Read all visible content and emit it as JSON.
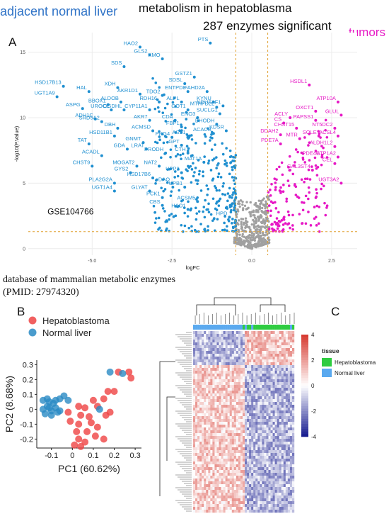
{
  "header": {
    "left_title": "adjacent normal liver",
    "center_title": "metabolism in hepatoblasma",
    "subtitle": "287 enzymes significant",
    "right_title": "tumors"
  },
  "panels": {
    "a": "A",
    "b": "B",
    "c": "C"
  },
  "database_note": {
    "line1": "database of mammalian metabolic enzymes",
    "line2": "(PMID: 27974320)"
  },
  "colors": {
    "normal": "#1f8fd0",
    "tumor": "#e619c5",
    "ns": "#a0a0a0",
    "threshold": "#e0a030",
    "hb_scatter": "#ef4444",
    "nl_scatter": "#2a8bc4",
    "hb_tissue": "#2ecc40",
    "nl_tissue": "#5aa9ef"
  },
  "chart_data": [
    {
      "type": "scatter",
      "name": "volcano",
      "xlabel": "logFC",
      "ylabel": "-log10(P.Value)",
      "xlim": [
        -7,
        3.3
      ],
      "ylim": [
        -0.5,
        16.5
      ],
      "xticks": [
        -5.0,
        -2.5,
        0.0,
        2.5
      ],
      "yticks": [
        0,
        5,
        10,
        15
      ],
      "grid": true,
      "thresholds": {
        "x": [
          -0.5,
          0.5
        ],
        "y": 1.3
      },
      "dataset_label": "GSE104766",
      "labeled_down": [
        {
          "label": "HAO2",
          "x": -3.5,
          "y": 15.4
        },
        {
          "label": "GLS2",
          "x": -3.2,
          "y": 14.8
        },
        {
          "label": "KMO",
          "x": -2.8,
          "y": 14.5
        },
        {
          "label": "PTS",
          "x": -1.3,
          "y": 15.7
        },
        {
          "label": "SDS",
          "x": -4.0,
          "y": 13.9
        },
        {
          "label": "GSTZ1",
          "x": -1.8,
          "y": 13.1
        },
        {
          "label": "HSD17B13",
          "x": -5.9,
          "y": 12.4
        },
        {
          "label": "SDSL",
          "x": -2.1,
          "y": 12.6
        },
        {
          "label": "HAL",
          "x": -5.1,
          "y": 12.0
        },
        {
          "label": "XDH",
          "x": -4.2,
          "y": 12.3
        },
        {
          "label": "AKR1D1",
          "x": -3.5,
          "y": 11.8
        },
        {
          "label": "TDO2",
          "x": -2.8,
          "y": 11.7
        },
        {
          "label": "ENTPD8",
          "x": -2.0,
          "y": 12.0
        },
        {
          "label": "FAHD2A",
          "x": -1.4,
          "y": 12.0
        },
        {
          "label": "UGT1A9",
          "x": -6.1,
          "y": 11.6
        },
        {
          "label": "KYNU",
          "x": -1.2,
          "y": 11.2
        },
        {
          "label": "BBOX1",
          "x": -4.5,
          "y": 11.0
        },
        {
          "label": "ALDOB",
          "x": -4.1,
          "y": 11.2
        },
        {
          "label": "RDH16",
          "x": -2.9,
          "y": 11.2
        },
        {
          "label": "ALPL",
          "x": -2.2,
          "y": 11.2
        },
        {
          "label": "MTHFD2L",
          "x": -1.1,
          "y": 10.8
        },
        {
          "label": "NDUFAF1",
          "x": -0.9,
          "y": 10.9
        },
        {
          "label": "ASPG",
          "x": -5.3,
          "y": 10.7
        },
        {
          "label": "UROC1",
          "x": -4.4,
          "y": 10.6
        },
        {
          "label": "OGDHL",
          "x": -4.0,
          "y": 10.6
        },
        {
          "label": "CYP11A1",
          "x": -3.2,
          "y": 10.6
        },
        {
          "label": "GOT1",
          "x": -2.0,
          "y": 10.6
        },
        {
          "label": "ENO3",
          "x": -1.7,
          "y": 10.0
        },
        {
          "label": "SUCLG1",
          "x": -1.0,
          "y": 10.3
        },
        {
          "label": "ADH1C",
          "x": -4.9,
          "y": 9.9
        },
        {
          "label": "SRD5A2",
          "x": -4.7,
          "y": 9.7
        },
        {
          "label": "AKR7",
          "x": -3.2,
          "y": 9.8
        },
        {
          "label": "CDA",
          "x": -2.4,
          "y": 9.8
        },
        {
          "label": "DHODH",
          "x": -1.1,
          "y": 9.5
        },
        {
          "label": "DBH",
          "x": -4.2,
          "y": 9.2
        },
        {
          "label": "FBP1",
          "x": -2.2,
          "y": 9.3
        },
        {
          "label": "ACMSD",
          "x": -3.1,
          "y": 9.0
        },
        {
          "label": "KDSR",
          "x": -0.8,
          "y": 9.0
        },
        {
          "label": "ACACB",
          "x": -1.2,
          "y": 8.8
        },
        {
          "label": "HSD11B1",
          "x": -4.3,
          "y": 8.6
        },
        {
          "label": "PRG4",
          "x": -2.5,
          "y": 8.5
        },
        {
          "label": "ASS1",
          "x": -2.0,
          "y": 8.6
        },
        {
          "label": "TAT",
          "x": -5.1,
          "y": 8.0
        },
        {
          "label": "GNMT",
          "x": -3.4,
          "y": 8.1
        },
        {
          "label": "GPT",
          "x": -2.2,
          "y": 7.9
        },
        {
          "label": "GDA",
          "x": -3.9,
          "y": 7.6
        },
        {
          "label": "LRAT",
          "x": -3.3,
          "y": 7.6
        },
        {
          "label": "ACADL",
          "x": -4.7,
          "y": 7.1
        },
        {
          "label": "PRODH",
          "x": -2.7,
          "y": 7.3
        },
        {
          "label": "CTH",
          "x": -2.0,
          "y": 7.3
        },
        {
          "label": "MAT1A",
          "x": -1.5,
          "y": 6.6
        },
        {
          "label": "CHST9",
          "x": -5.0,
          "y": 6.3
        },
        {
          "label": "MOGAT2",
          "x": -3.6,
          "y": 6.3
        },
        {
          "label": "NAT2",
          "x": -2.9,
          "y": 6.3
        },
        {
          "label": "GYS2",
          "x": -3.8,
          "y": 5.8
        },
        {
          "label": "UPP2",
          "x": -2.2,
          "y": 5.8
        },
        {
          "label": "HSD17B6",
          "x": -3.1,
          "y": 5.4
        },
        {
          "label": "PLA2G2A",
          "x": -4.3,
          "y": 5.0
        },
        {
          "label": "DAO",
          "x": -2.5,
          "y": 5.0
        },
        {
          "label": "UGT1A4",
          "x": -4.3,
          "y": 4.4
        },
        {
          "label": "GLYAT",
          "x": -3.2,
          "y": 4.4
        },
        {
          "label": "UPB1",
          "x": -2.1,
          "y": 4.7
        },
        {
          "label": "PCK1",
          "x": -2.8,
          "y": 3.9
        },
        {
          "label": "ACSM5",
          "x": -1.7,
          "y": 3.6
        },
        {
          "label": "CBS",
          "x": -2.8,
          "y": 3.3
        },
        {
          "label": "HAO1",
          "x": -2.0,
          "y": 3.0
        },
        {
          "label": "HPD",
          "x": -0.7,
          "y": 2.4
        }
      ],
      "labeled_up": [
        {
          "label": "HSDL1",
          "x": 1.8,
          "y": 12.5
        },
        {
          "label": "ATP10A",
          "x": 2.7,
          "y": 11.2
        },
        {
          "label": "OXCT1",
          "x": 2.0,
          "y": 10.5
        },
        {
          "label": "GLUL",
          "x": 2.8,
          "y": 10.2
        },
        {
          "label": "ACLY",
          "x": 1.2,
          "y": 10.0
        },
        {
          "label": "PAPSS1",
          "x": 2.0,
          "y": 9.8
        },
        {
          "label": "CS",
          "x": 1.0,
          "y": 9.6
        },
        {
          "label": "CHST15",
          "x": 1.4,
          "y": 9.2
        },
        {
          "label": "NT5DC2",
          "x": 2.6,
          "y": 9.2
        },
        {
          "label": "DDAH2",
          "x": 0.9,
          "y": 8.7
        },
        {
          "label": "SQLE",
          "x": 2.1,
          "y": 8.6
        },
        {
          "label": "ACSL4",
          "x": 2.7,
          "y": 8.6
        },
        {
          "label": "MTR",
          "x": 1.5,
          "y": 8.4
        },
        {
          "label": "PDE7A",
          "x": 0.9,
          "y": 8.0
        },
        {
          "label": "ALDH1L2",
          "x": 2.6,
          "y": 7.8
        },
        {
          "label": "PDE4C",
          "x": 2.2,
          "y": 7.0
        },
        {
          "label": "ATP1A2",
          "x": 2.7,
          "y": 7.0
        },
        {
          "label": "CEL",
          "x": 2.6,
          "y": 6.5
        },
        {
          "label": "GAL3ST4",
          "x": 1.9,
          "y": 6.0
        },
        {
          "label": "UGT3A2",
          "x": 2.8,
          "y": 5.0
        }
      ],
      "n_background": {
        "down": 300,
        "up": 150,
        "ns": 400
      }
    },
    {
      "type": "scatter",
      "name": "pca",
      "xlabel": "PC1 (60.62%)",
      "ylabel": "PC2 (8.68%)",
      "xlim": [
        -0.17,
        0.33
      ],
      "ylim": [
        -0.26,
        0.33
      ],
      "xticks": [
        -0.1,
        0.0,
        0.1,
        0.2,
        0.3
      ],
      "yticks": [
        -0.2,
        -0.1,
        0.0,
        0.1,
        0.2,
        0.3
      ],
      "legend_position": "top-left",
      "series": [
        {
          "name": "Hepatoblastoma",
          "points": [
            [
              0.22,
              0.25
            ],
            [
              0.27,
              0.25
            ],
            [
              0.28,
              0.21
            ],
            [
              0.17,
              0.12
            ],
            [
              0.2,
              0.12
            ],
            [
              0.15,
              0.07
            ],
            [
              0.1,
              0.06
            ],
            [
              0.03,
              0.02
            ],
            [
              0.06,
              0.01
            ],
            [
              0.12,
              0.02
            ],
            [
              -0.02,
              -0.02
            ],
            [
              0.04,
              -0.04
            ],
            [
              0.08,
              -0.05
            ],
            [
              0.16,
              -0.04
            ],
            [
              0.18,
              -0.02
            ],
            [
              -0.01,
              -0.08
            ],
            [
              0.03,
              -0.1
            ],
            [
              0.09,
              -0.09
            ],
            [
              0.12,
              -0.12
            ],
            [
              0.02,
              -0.15
            ],
            [
              0.07,
              -0.15
            ],
            [
              0.11,
              -0.18
            ],
            [
              0.03,
              -0.2
            ],
            [
              0.06,
              -0.22
            ],
            [
              0.15,
              -0.2
            ],
            [
              0.04,
              -0.25
            ],
            [
              0.01,
              -0.24
            ]
          ]
        },
        {
          "name": "Normal liver",
          "points": [
            [
              0.24,
              0.24
            ],
            [
              0.18,
              0.25
            ],
            [
              -0.06,
              0.07
            ],
            [
              -0.04,
              0.09
            ],
            [
              -0.02,
              0.06
            ],
            [
              -0.14,
              0.06
            ],
            [
              -0.11,
              0.05
            ],
            [
              -0.09,
              0.04
            ],
            [
              -0.12,
              0.02
            ],
            [
              -0.08,
              0.01
            ],
            [
              -0.14,
              0.0
            ],
            [
              -0.1,
              -0.01
            ],
            [
              -0.07,
              -0.02
            ],
            [
              -0.13,
              -0.03
            ],
            [
              -0.1,
              -0.04
            ],
            [
              -0.12,
              0.07
            ],
            [
              -0.08,
              0.06
            ],
            [
              -0.06,
              -0.01
            ],
            [
              0.13,
              0.0
            ],
            [
              -0.11,
              0.01
            ]
          ]
        }
      ]
    },
    {
      "type": "heatmap",
      "name": "heatmap",
      "legend_title": "tissue",
      "colorbar_ticks": [
        4,
        2,
        0,
        -2,
        -4
      ],
      "colorbar_range": [
        -4,
        4
      ],
      "groups": [
        {
          "name": "Hepatoblastoma",
          "color": "#2ecc40"
        },
        {
          "name": "Normal liver",
          "color": "#5aa9ef"
        }
      ],
      "tissue_bar": [
        "Normal liver",
        "Normal liver",
        "Normal liver",
        "Normal liver",
        "Normal liver",
        "Normal liver",
        "Normal liver",
        "Normal liver",
        "Normal liver",
        "Normal liver",
        "Normal liver",
        "Normal liver",
        "Normal liver",
        "Normal liver",
        "Normal liver",
        "Normal liver",
        "Normal liver",
        "Normal liver",
        "Normal liver",
        "Normal liver",
        "Normal liver",
        "Normal liver",
        "Normal liver",
        "Hepatoblastoma",
        "Normal liver",
        "Hepatoblastoma",
        "Hepatoblastoma",
        "Normal liver",
        "Hepatoblastoma",
        "Hepatoblastoma",
        "Hepatoblastoma",
        "Hepatoblastoma",
        "Hepatoblastoma",
        "Hepatoblastoma",
        "Hepatoblastoma",
        "Hepatoblastoma",
        "Hepatoblastoma",
        "Hepatoblastoma",
        "Hepatoblastoma",
        "Hepatoblastoma",
        "Hepatoblastoma",
        "Hepatoblastoma",
        "Hepatoblastoma",
        "Hepatoblastoma",
        "Hepatoblastoma",
        "Normal liver",
        "Hepatoblastoma"
      ],
      "n_rows": 287
    }
  ]
}
